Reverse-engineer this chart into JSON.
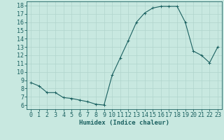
{
  "x": [
    0,
    1,
    2,
    3,
    4,
    5,
    6,
    7,
    8,
    9,
    10,
    11,
    12,
    13,
    14,
    15,
    16,
    17,
    18,
    19,
    20,
    21,
    22,
    23
  ],
  "y": [
    8.7,
    8.3,
    7.5,
    7.5,
    6.9,
    6.8,
    6.6,
    6.4,
    6.1,
    6.0,
    9.6,
    11.7,
    13.8,
    16.0,
    17.1,
    17.7,
    17.9,
    17.9,
    17.9,
    16.0,
    12.5,
    12.0,
    11.1,
    13.0
  ],
  "bg_color": "#c8e8e0",
  "grid_color": "#b0d4cc",
  "line_color": "#1a6060",
  "marker_color": "#1a6060",
  "xlabel": "Humidex (Indice chaleur)",
  "xlabel_fontsize": 6.5,
  "tick_fontsize": 6,
  "ylim": [
    5.5,
    18.5
  ],
  "yticks": [
    6,
    7,
    8,
    9,
    10,
    11,
    12,
    13,
    14,
    15,
    16,
    17,
    18
  ],
  "xlim": [
    -0.5,
    23.5
  ],
  "xticks": [
    0,
    1,
    2,
    3,
    4,
    5,
    6,
    7,
    8,
    9,
    10,
    11,
    12,
    13,
    14,
    15,
    16,
    17,
    18,
    19,
    20,
    21,
    22,
    23
  ]
}
